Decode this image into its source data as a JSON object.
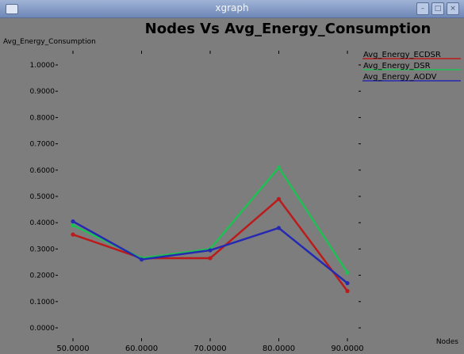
{
  "window": {
    "title": "xgraph",
    "buttons": [
      "minimize-icon",
      "maximize-icon",
      "close-icon"
    ]
  },
  "chart_data": {
    "type": "line",
    "title": "Nodes Vs Avg_Energy_Consumption",
    "xlabel": "Nodes",
    "ylabel": "Avg_Energy_Consumption",
    "x": [
      50,
      60,
      70,
      80,
      90
    ],
    "x_tick_labels": [
      "50.0000",
      "60.0000",
      "70.0000",
      "80.0000",
      "90.0000"
    ],
    "y_tick_labels": [
      "0.0000",
      "0.1000",
      "0.2000",
      "0.3000",
      "0.4000",
      "0.5000",
      "0.6000",
      "0.7000",
      "0.8000",
      "0.9000",
      "1.0000"
    ],
    "xlim": [
      50,
      90
    ],
    "ylim": [
      0,
      1
    ],
    "grid": false,
    "legend_position": "top-right",
    "series": [
      {
        "name": "Avg_Energy_ECDSR",
        "color": "#bb1b1b",
        "values": [
          0.355,
          0.265,
          0.265,
          0.49,
          0.14
        ]
      },
      {
        "name": "Avg_Energy_DSR",
        "color": "#1fbf53",
        "values": [
          0.39,
          0.265,
          0.3,
          0.61,
          0.21
        ]
      },
      {
        "name": "Avg_Energy_AODV",
        "color": "#2629b2",
        "values": [
          0.405,
          0.26,
          0.295,
          0.38,
          0.17
        ]
      }
    ]
  }
}
